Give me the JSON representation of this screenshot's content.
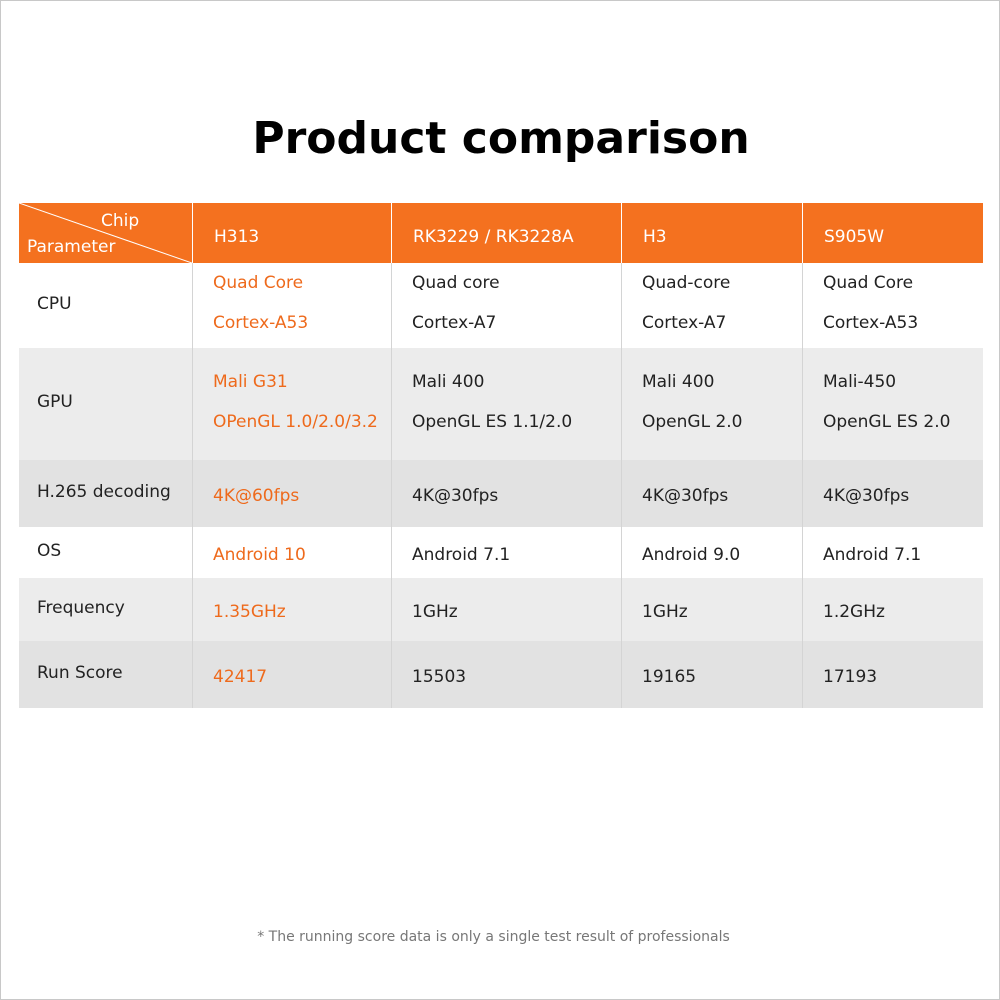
{
  "title": "Product comparison",
  "table": {
    "header": {
      "corner_top": "Chip",
      "corner_bottom": "Parameter",
      "columns": [
        "H313",
        "RK3229 / RK3228A",
        "H3",
        "S905W"
      ]
    },
    "rows": [
      {
        "label": "CPU",
        "cells": [
          [
            "Quad Core",
            "Cortex-A53"
          ],
          [
            "Quad core",
            "Cortex-A7"
          ],
          [
            "Quad-core",
            "Cortex-A7"
          ],
          [
            "Quad Core",
            "Cortex-A53"
          ]
        ]
      },
      {
        "label": "GPU",
        "cells": [
          [
            "Mali G31",
            "OPenGL 1.0/2.0/3.2"
          ],
          [
            "Mali 400",
            "OpenGL ES 1.1/2.0"
          ],
          [
            "Mali 400",
            "OpenGL 2.0"
          ],
          [
            "Mali-450",
            "OpenGL ES 2.0"
          ]
        ]
      },
      {
        "label": "H.265 decoding",
        "cells": [
          [
            "4K@60fps"
          ],
          [
            "4K@30fps"
          ],
          [
            "4K@30fps"
          ],
          [
            "4K@30fps"
          ]
        ]
      },
      {
        "label": "OS",
        "cells": [
          [
            "Android 10"
          ],
          [
            "Android 7.1"
          ],
          [
            "Android 9.0"
          ],
          [
            "Android 7.1"
          ]
        ]
      },
      {
        "label": "Frequency",
        "cells": [
          [
            "1.35GHz"
          ],
          [
            "1GHz"
          ],
          [
            "1GHz"
          ],
          [
            "1.2GHz"
          ]
        ]
      },
      {
        "label": "Run Score",
        "cells": [
          [
            "42417"
          ],
          [
            "15503"
          ],
          [
            "19165"
          ],
          [
            "17193"
          ]
        ]
      }
    ]
  },
  "footnote": "* The running score data is only a single test result of professionals"
}
